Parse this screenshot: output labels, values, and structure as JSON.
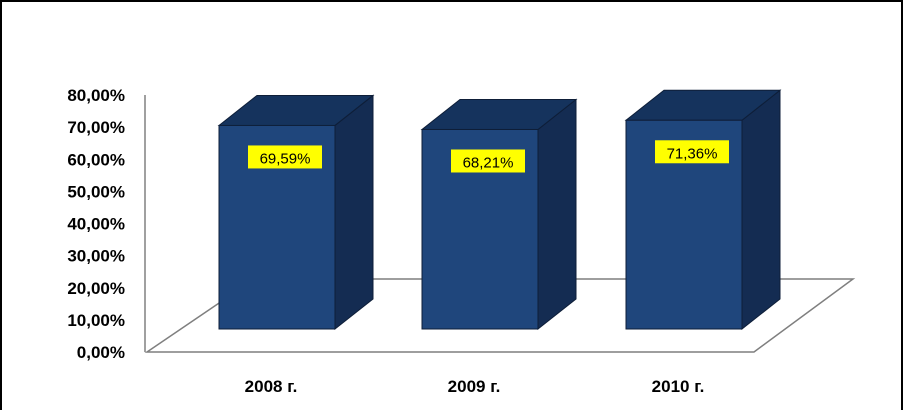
{
  "chart_data": {
    "type": "bar",
    "style": "3d-column",
    "categories": [
      "2008 г.",
      "2009 г.",
      "2010 г."
    ],
    "values": [
      69.59,
      68.21,
      71.36
    ],
    "data_labels": [
      "69,59%",
      "68,21%",
      "71,36%"
    ],
    "y_ticks": [
      "0,00%",
      "10,00%",
      "20,00%",
      "30,00%",
      "40,00%",
      "50,00%",
      "60,00%",
      "70,00%",
      "80,00%"
    ],
    "ylim": [
      0,
      80
    ],
    "title": "",
    "xlabel": "",
    "ylabel": "",
    "grid": false,
    "legend": "none",
    "colors": {
      "bar_front": "#1F467C",
      "bar_top": "#15335D",
      "bar_side": "#142C52",
      "bar_edge": "#0E1E38",
      "label_bg": "#FFFF00",
      "floor_stroke": "#7F7F7F",
      "axis": "#808080"
    }
  }
}
